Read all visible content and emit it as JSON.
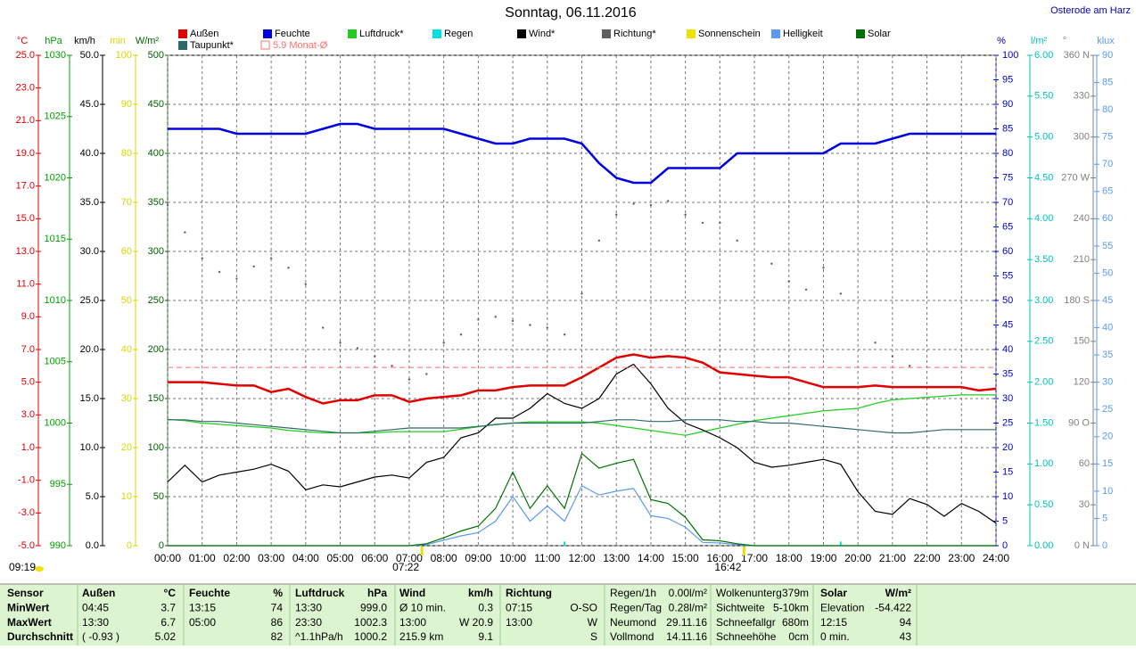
{
  "chart_data": {
    "type": "multi-axis-line",
    "title": "Sonntag, 06.11.2016",
    "location": "Osterode am Harz",
    "sunshine_duration": "09:19",
    "grid": true,
    "xlim": [
      0,
      24
    ],
    "xticks": [
      {
        "value": 0,
        "label": "00:00"
      },
      {
        "value": 1,
        "label": "01:00"
      },
      {
        "value": 2,
        "label": "02:00"
      },
      {
        "value": 3,
        "label": "03:00"
      },
      {
        "value": 4,
        "label": "04:00"
      },
      {
        "value": 5,
        "label": "05:00"
      },
      {
        "value": 6,
        "label": "06:00"
      },
      {
        "value": 7,
        "label": "07:00"
      },
      {
        "value": 8,
        "label": "08:00"
      },
      {
        "value": 9,
        "label": "09:00"
      },
      {
        "value": 10,
        "label": "10:00"
      },
      {
        "value": 11,
        "label": "11:00"
      },
      {
        "value": 12,
        "label": "12:00"
      },
      {
        "value": 13,
        "label": "13:00"
      },
      {
        "value": 14,
        "label": "14:00"
      },
      {
        "value": 15,
        "label": "15:00"
      },
      {
        "value": 16,
        "label": "16:00"
      },
      {
        "value": 17,
        "label": "17:00"
      },
      {
        "value": 18,
        "label": "18:00"
      },
      {
        "value": 19,
        "label": "19:00"
      },
      {
        "value": 20,
        "label": "20:00"
      },
      {
        "value": 21,
        "label": "21:00"
      },
      {
        "value": 22,
        "label": "22:00"
      },
      {
        "value": 23,
        "label": "23:00"
      },
      {
        "value": 24,
        "label": "24:00"
      }
    ],
    "axes": [
      {
        "unit": "°C",
        "color": "#e00000",
        "side": "left",
        "lim": [
          -5,
          25
        ],
        "ticks": [
          {
            "value": 25,
            "label": "25.0"
          },
          {
            "value": 23,
            "label": "23.0"
          },
          {
            "value": 21,
            "label": "21.0"
          },
          {
            "value": 19,
            "label": "19.0"
          },
          {
            "value": 17,
            "label": "17.0"
          },
          {
            "value": 15,
            "label": "15.0"
          },
          {
            "value": 13,
            "label": "13.0"
          },
          {
            "value": 11,
            "label": "11.0"
          },
          {
            "value": 9,
            "label": "9.0"
          },
          {
            "value": 7,
            "label": "7.0"
          },
          {
            "value": 5,
            "label": "5.0"
          },
          {
            "value": 3,
            "label": "3.0"
          },
          {
            "value": 1,
            "label": "1.0"
          },
          {
            "value": -1,
            "label": "-1.0"
          },
          {
            "value": -3,
            "label": "-3.0"
          },
          {
            "value": -5,
            "label": "-5.0"
          }
        ]
      },
      {
        "unit": "hPa",
        "color": "#00a000",
        "side": "left",
        "lim": [
          990,
          1030
        ],
        "ticks": [
          1030,
          1025,
          1020,
          1015,
          1010,
          1005,
          1000,
          995,
          990
        ]
      },
      {
        "unit": "km/h",
        "color": "#000000",
        "side": "left",
        "lim": [
          0,
          50
        ],
        "ticks": [
          {
            "value": 50,
            "label": "50.0"
          },
          {
            "value": 45,
            "label": "45.0"
          },
          {
            "value": 40,
            "label": "40.0"
          },
          {
            "value": 35,
            "label": "35.0"
          },
          {
            "value": 30,
            "label": "30.0"
          },
          {
            "value": 25,
            "label": "25.0"
          },
          {
            "value": 20,
            "label": "20.0"
          },
          {
            "value": 15,
            "label": "15.0"
          },
          {
            "value": 10,
            "label": "10.0"
          },
          {
            "value": 5,
            "label": "5.0"
          },
          {
            "value": 0,
            "label": "0.0"
          }
        ]
      },
      {
        "unit": "min",
        "color": "#d8d800",
        "side": "left",
        "lim": [
          0,
          100
        ],
        "ticks": [
          100,
          90,
          80,
          70,
          60,
          50,
          40,
          30,
          20,
          10,
          0
        ]
      },
      {
        "unit": "W/m²",
        "color": "#006000",
        "side": "left",
        "lim": [
          0,
          500
        ],
        "ticks": [
          500,
          450,
          400,
          350,
          300,
          250,
          200,
          150,
          100,
          50,
          0
        ]
      },
      {
        "unit": "%",
        "color": "#0000c0",
        "side": "right",
        "lim": [
          0,
          100
        ],
        "ticks": [
          100,
          95,
          90,
          85,
          80,
          75,
          70,
          65,
          60,
          55,
          50,
          45,
          40,
          35,
          30,
          25,
          20,
          15,
          10,
          5,
          0
        ]
      },
      {
        "unit": "l/m²",
        "color": "#00c0c0",
        "side": "right",
        "lim": [
          0,
          6
        ],
        "ticks": [
          {
            "value": 6,
            "label": "6.00"
          },
          {
            "value": 5.5,
            "label": "5.50"
          },
          {
            "value": 5,
            "label": "5.00"
          },
          {
            "value": 4.5,
            "label": "4.50"
          },
          {
            "value": 4,
            "label": "4.00"
          },
          {
            "value": 3.5,
            "label": "3.50"
          },
          {
            "value": 3,
            "label": "3.00"
          },
          {
            "value": 2.5,
            "label": "2.50"
          },
          {
            "value": 2,
            "label": "2.00"
          },
          {
            "value": 1.5,
            "label": "1.50"
          },
          {
            "value": 1,
            "label": "1.00"
          },
          {
            "value": 0.5,
            "label": "0.50"
          },
          {
            "value": 0,
            "label": "0.00"
          }
        ]
      },
      {
        "unit": "°",
        "color": "#808080",
        "side": "right",
        "lim": [
          0,
          360
        ],
        "ticks": [
          {
            "value": 360,
            "label": "360 N"
          },
          330,
          300,
          {
            "value": 270,
            "label": "270 W"
          },
          240,
          210,
          {
            "value": 180,
            "label": "180 S"
          },
          150,
          120,
          {
            "value": 90,
            "label": "90 O"
          },
          60,
          30,
          {
            "value": 0,
            "label": "0 N"
          }
        ]
      },
      {
        "unit": "klux",
        "color": "#5a9af0",
        "side": "right",
        "lim": [
          0,
          90
        ],
        "ticks": [
          90,
          85,
          80,
          75,
          70,
          65,
          60,
          55,
          50,
          45,
          40,
          35,
          30,
          25,
          20,
          15,
          10,
          5,
          0
        ]
      }
    ],
    "x": [
      0,
      0.5,
      1,
      1.5,
      2,
      2.5,
      3,
      3.5,
      4,
      4.5,
      5,
      5.5,
      6,
      6.5,
      7,
      7.5,
      8,
      8.5,
      9,
      9.5,
      10,
      10.5,
      11,
      11.5,
      12,
      12.5,
      13,
      13.5,
      14,
      14.5,
      15,
      15.5,
      16,
      16.5,
      17,
      17.5,
      18,
      18.5,
      19,
      19.5,
      20,
      20.5,
      21,
      21.5,
      22,
      22.5,
      23,
      23.5,
      24
    ],
    "series": [
      {
        "name": "Außen",
        "color": "#e00000",
        "kind": "line",
        "axis": "°C",
        "values": [
          5.0,
          5.0,
          5.0,
          4.9,
          4.8,
          4.8,
          4.4,
          4.6,
          4.1,
          3.7,
          3.9,
          3.9,
          4.2,
          4.2,
          3.8,
          4.0,
          4.1,
          4.2,
          4.5,
          4.5,
          4.7,
          4.8,
          4.8,
          4.8,
          5.3,
          5.9,
          6.5,
          6.7,
          6.5,
          6.6,
          6.5,
          6.2,
          5.6,
          5.5,
          5.4,
          5.3,
          5.3,
          5.0,
          4.7,
          4.7,
          4.7,
          4.8,
          4.7,
          4.7,
          4.7,
          4.7,
          4.7,
          4.5,
          4.6
        ]
      },
      {
        "name": "Feuchte",
        "color": "#0000e0",
        "kind": "line",
        "axis": "%",
        "values": [
          85,
          85,
          85,
          85,
          84,
          84,
          84,
          84,
          84,
          85,
          86,
          86,
          85,
          85,
          85,
          85,
          85,
          84,
          83,
          82,
          82,
          83,
          83,
          83,
          82,
          78,
          75,
          74,
          74,
          77,
          77,
          77,
          77,
          80,
          80,
          80,
          80,
          80,
          80,
          82,
          82,
          82,
          83,
          84,
          84,
          84,
          84,
          84,
          84
        ]
      },
      {
        "name": "Luftdruck*",
        "color": "#22cc22",
        "kind": "line",
        "axis": "hPa",
        "values": [
          1000.3,
          1000.2,
          1000.0,
          999.9,
          999.8,
          999.7,
          999.6,
          999.4,
          999.3,
          999.2,
          999.2,
          999.2,
          999.2,
          999.3,
          999.3,
          999.3,
          999.3,
          999.5,
          999.7,
          999.9,
          1000.0,
          1000.1,
          1000.1,
          1000.1,
          1000.1,
          1000.0,
          999.8,
          999.6,
          999.4,
          999.2,
          999.0,
          999.3,
          999.6,
          999.9,
          1000.2,
          1000.4,
          1000.6,
          1000.8,
          1001.0,
          1001.1,
          1001.2,
          1001.6,
          1001.9,
          1002.0,
          1002.1,
          1002.2,
          1002.3,
          1002.3,
          1002.3
        ]
      },
      {
        "name": "Regen",
        "color": "#00e0e0",
        "kind": "bars",
        "axis": "l/m²",
        "values": [
          null,
          null,
          null,
          null,
          null,
          null,
          null,
          null,
          null,
          null,
          null,
          null,
          null,
          null,
          null,
          null,
          null,
          null,
          null,
          null,
          null,
          null,
          null,
          0.05,
          null,
          null,
          null,
          null,
          null,
          null,
          null,
          null,
          null,
          null,
          null,
          null,
          null,
          null,
          null,
          0.05,
          null,
          null,
          null,
          null,
          null,
          null,
          null,
          null,
          null
        ]
      },
      {
        "name": "Wind*",
        "color": "#000000",
        "kind": "line",
        "axis": "km/h",
        "values": [
          6.5,
          8.2,
          6.5,
          7.2,
          7.5,
          7.8,
          8.3,
          7.6,
          5.7,
          6.2,
          6.0,
          6.5,
          7.0,
          7.2,
          6.9,
          8.5,
          9.0,
          11.0,
          11.5,
          13.0,
          13.0,
          14.0,
          15.5,
          14.5,
          14.0,
          15.0,
          17.5,
          18.5,
          16.5,
          14.0,
          12.5,
          11.8,
          11.0,
          10.0,
          8.5,
          8.0,
          8.2,
          8.5,
          8.8,
          8.3,
          5.5,
          3.5,
          3.2,
          4.8,
          4.2,
          3.0,
          4.3,
          3.5,
          2.3
        ]
      },
      {
        "name": "Richtung*",
        "color": "#606060",
        "kind": "dots",
        "axis": "°",
        "values": [
          250,
          230,
          211,
          201,
          196,
          205,
          211,
          204,
          192,
          160,
          149,
          145,
          139,
          132,
          122,
          126,
          149,
          155,
          166,
          168,
          165,
          162,
          160,
          155,
          185,
          224,
          243,
          251,
          250,
          253,
          243,
          237,
          237,
          224,
          null,
          207,
          194,
          188,
          204,
          185,
          null,
          149,
          139,
          132,
          null,
          null,
          null,
          null,
          null
        ]
      },
      {
        "name": "Sonnenschein",
        "color": "#f0e000",
        "kind": "markers",
        "markers": [
          {
            "value": 7.367,
            "label": "07:22"
          },
          {
            "value": 16.7,
            "label": "16:42"
          }
        ]
      },
      {
        "name": "Helligkeit",
        "color": "#5a9af0",
        "kind": "line",
        "axis": "klux",
        "values": [
          0,
          0,
          0,
          0,
          0,
          0,
          0,
          0,
          0,
          0,
          0,
          0,
          0,
          0,
          0,
          0.2,
          1.0,
          1.8,
          2.4,
          4.5,
          9.0,
          4.5,
          7.3,
          4.5,
          11.0,
          9.3,
          10.0,
          10.5,
          5.5,
          5.0,
          3.4,
          0.6,
          0.5,
          0.2,
          0,
          0,
          0,
          0,
          0,
          0,
          0,
          0,
          0,
          0,
          0,
          0,
          0,
          0,
          0
        ]
      },
      {
        "name": "Solar",
        "color": "#007000",
        "kind": "line",
        "axis": "W/m²",
        "values": [
          0,
          0,
          0,
          0,
          0,
          0,
          0,
          0,
          0,
          0,
          0,
          0,
          0,
          0,
          0,
          2,
          8,
          15,
          20,
          38,
          75,
          38,
          61,
          38,
          94,
          79,
          84,
          88,
          47,
          43,
          29,
          6,
          5,
          2,
          0,
          0,
          0,
          0,
          0,
          0,
          0,
          0,
          0,
          0,
          0,
          0,
          0,
          0,
          0
        ]
      },
      {
        "name": "Taupunkt*",
        "color": "#306868",
        "kind": "line",
        "axis": "°C",
        "values": [
          2.7,
          2.7,
          2.6,
          2.6,
          2.5,
          2.4,
          2.3,
          2.2,
          2.1,
          2.0,
          1.9,
          1.9,
          2.0,
          2.1,
          2.2,
          2.2,
          2.2,
          2.2,
          2.3,
          2.4,
          2.5,
          2.5,
          2.5,
          2.5,
          2.5,
          2.6,
          2.7,
          2.7,
          2.6,
          2.6,
          2.7,
          2.7,
          2.7,
          2.6,
          2.6,
          2.5,
          2.5,
          2.4,
          2.3,
          2.2,
          2.1,
          2.0,
          1.9,
          1.9,
          2.0,
          2.1,
          2.1,
          2.1,
          2.1
        ]
      },
      {
        "name": "5.9 Monat-Ø",
        "color": "#ff7070",
        "kind": "hline",
        "axis": "°C",
        "value": 5.9
      }
    ]
  },
  "table": {
    "rows": [
      [
        "Sensor",
        "Außen",
        "°C",
        "Feuchte",
        "%",
        "Luftdruck",
        "hPa",
        "Wind",
        "km/h",
        "Richtung",
        null,
        "Regen/1h",
        "0.00l/m²",
        "Wolkenunterg",
        "379m",
        "Solar",
        "W/m²"
      ],
      [
        "MinWert",
        "04:45",
        "3.7",
        "13:15",
        "74",
        "13:30",
        "999.0",
        "Ø 10 min.",
        "0.3",
        "07:15",
        "O-SO",
        "Regen/Tag",
        "0.28l/m²",
        "Sichtweite",
        "5-10km",
        "Elevation",
        "-54.422"
      ],
      [
        "MaxWert",
        "13:30",
        "6.7",
        "05:00",
        "86",
        "23:30",
        "1002.3",
        "13:00",
        "W 20.9",
        "13:00",
        "W",
        "Neumond",
        "29.11.16",
        "Schneefallgr",
        "680m",
        "12:15",
        "94"
      ],
      [
        "Durchschnitt",
        "( -0.93 )",
        "5.02",
        null,
        "82",
        "^1.1hPa/h",
        "1000.2",
        "215.9 km",
        "9.1",
        null,
        "S",
        "Vollmond",
        "14.11.16",
        "Schneehöhe",
        "0cm",
        "0 min.",
        "43"
      ]
    ]
  }
}
